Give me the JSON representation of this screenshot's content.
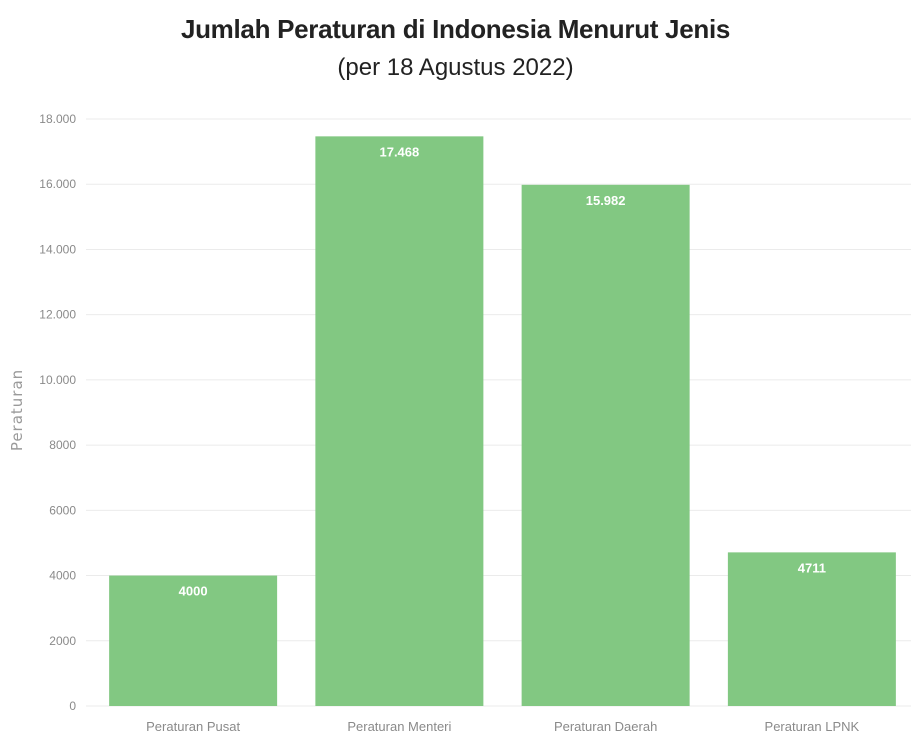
{
  "chart_data": {
    "type": "bar",
    "title": "Jumlah Peraturan di Indonesia Menurut Jenis",
    "subtitle": "(per 18 Agustus 2022)",
    "xlabel": "",
    "ylabel": "Peraturan",
    "categories": [
      "Peraturan Pusat",
      "Peraturan Menteri",
      "Peraturan Daerah",
      "Peraturan LPNK"
    ],
    "values": [
      4000,
      17468,
      15982,
      4711
    ],
    "data_labels": [
      "4000",
      "17.468",
      "15.982",
      "4711"
    ],
    "ylim": [
      0,
      18000
    ],
    "yticks": [
      0,
      2000,
      4000,
      6000,
      8000,
      10000,
      12000,
      14000,
      16000,
      18000
    ],
    "ytick_labels": [
      "0",
      "2000",
      "4000",
      "6000",
      "8000",
      "10.000",
      "12.000",
      "14.000",
      "16.000",
      "18.000"
    ],
    "grid": true,
    "legend": "none",
    "colors": {
      "bar": "#82c882",
      "grid": "#ebebeb",
      "axis_text": "#8a8a8a",
      "data_label": "#ffffff"
    }
  }
}
